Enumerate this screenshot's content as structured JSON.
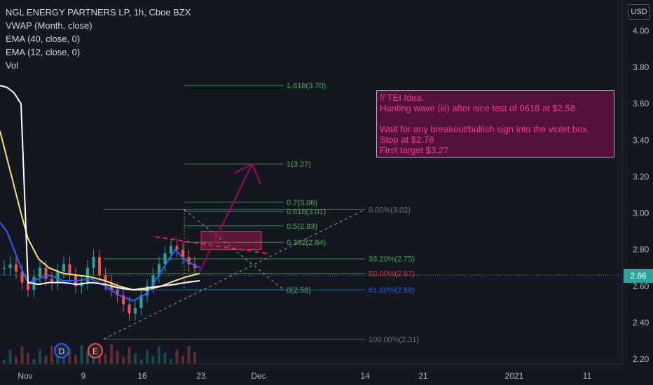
{
  "header": {
    "title": "NGL ENERGY PARTNERS LP, 1h, Cboe BZX",
    "indicators": [
      "VWAP (Month, close)",
      "EMA (40, close, 0)",
      "EMA (12, close, 0)",
      "Vol"
    ],
    "currency": "USD",
    "current_price": "2.66"
  },
  "idea_note": {
    "lines": [
      "// TEI Idea.",
      "Hunting wave (iii) after nice test of 0618 at $2.58.",
      "",
      "Wait for any breakout/bullish sign into the violet box.",
      "Stop at $2.78",
      "First target $3.27"
    ]
  },
  "events": {
    "dividend": "D",
    "earnings": "E"
  },
  "colors": {
    "background": "#131722",
    "vwap": "#ffffff",
    "ema40": "#f5e27a",
    "ema12": "#2962ff",
    "up": "#26a69a",
    "down": "#ef5350",
    "fib_ext": "#4caf50",
    "fib_ret_grey": "#787b86",
    "arrow": "#880e4f",
    "target_box": "#e91e63"
  },
  "chart_data": {
    "type": "candlestick",
    "y_axis": {
      "ticks": [
        "4.00",
        "3.80",
        "3.60",
        "3.40",
        "3.20",
        "3.00",
        "2.80",
        "2.60",
        "2.40",
        "2.20"
      ],
      "ylim": [
        2.18,
        4.06
      ]
    },
    "x_axis": {
      "ticks": [
        "Nov",
        "9",
        "16",
        "23",
        "Dec",
        "14",
        "21",
        "2021",
        "11"
      ]
    },
    "fib_extension_levels": [
      {
        "label": "1.618(3.70)",
        "value": 3.7
      },
      {
        "label": "1(3.27)",
        "value": 3.27
      },
      {
        "label": "0.7(3.06)",
        "value": 3.06
      },
      {
        "label": "0.618(3.01)",
        "value": 3.01
      },
      {
        "label": "0.5(2.93)",
        "value": 2.93
      },
      {
        "label": "0.382(2.84)",
        "value": 2.84
      },
      {
        "label": "0(2.58)",
        "value": 2.58
      }
    ],
    "fib_retracement_levels": [
      {
        "label": "0.00%(3.02)",
        "value": 3.02
      },
      {
        "label": "38.20%(2.75)",
        "value": 2.75
      },
      {
        "label": "50.00%(2.67)",
        "value": 2.67
      },
      {
        "label": "61.80%(2.58)",
        "value": 2.58
      },
      {
        "label": "100.00%(2.31)",
        "value": 2.31
      }
    ],
    "target_box": {
      "low": 2.8,
      "high": 2.9
    },
    "annotations": {
      "stop": 2.78,
      "first_target": 3.27,
      "test_level": 2.58
    },
    "last_price": 2.66
  }
}
